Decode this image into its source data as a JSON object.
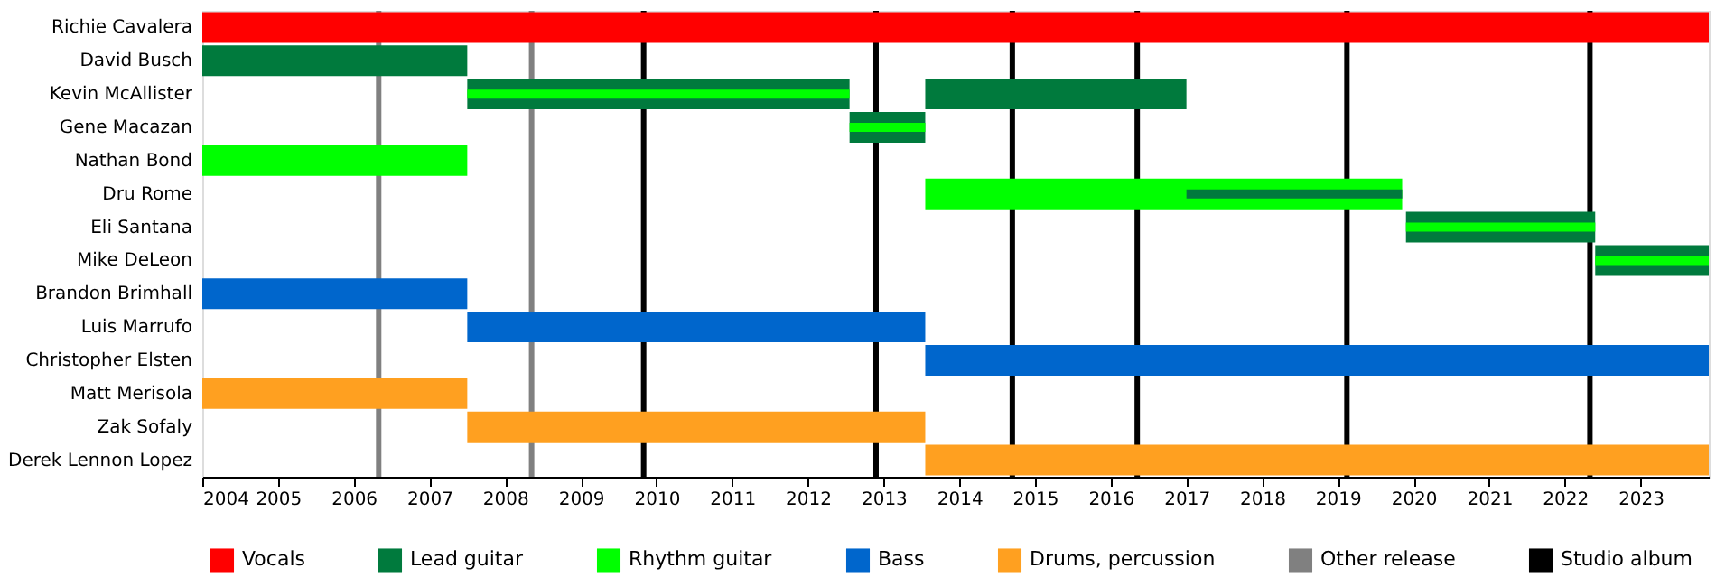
{
  "chart_data": {
    "type": "bar",
    "orientation": "horizontal",
    "categories": [
      "Richie Cavalera",
      "David Busch",
      "Kevin McAllister",
      "Gene Macazan",
      "Nathan Bond",
      "Dru Rome",
      "Eli Santana",
      "Mike DeLeon",
      "Brandon Brimhall",
      "Luis Marrufo",
      "Christopher Elsten",
      "Matt Merisola",
      "Zak Sofaly",
      "Derek Lennon Lopez"
    ],
    "series": [
      {
        "name": "Vocals",
        "color": "#ff0000",
        "base": [
          2004,
          null,
          null,
          null,
          null,
          null,
          null,
          null,
          null,
          null,
          null,
          null,
          null,
          null
        ],
        "values": [
          19.9,
          null,
          null,
          null,
          null,
          null,
          null,
          null,
          null,
          null,
          null,
          null,
          null,
          null
        ]
      },
      {
        "name": "Lead guitar",
        "color": "#007a3d",
        "base": [
          null,
          2004,
          2007.5,
          2012.55,
          null,
          null,
          2019.9,
          2022.4,
          null,
          null,
          null,
          null,
          null,
          null
        ],
        "values": [
          null,
          3.5,
          5.05,
          1.0,
          null,
          null,
          2.5,
          1.5,
          null,
          null,
          null,
          null,
          null,
          null
        ]
      },
      {
        "color": "#007a3d",
        "base": [
          null,
          null,
          2013.55,
          null,
          null,
          null,
          null,
          null,
          null,
          null,
          null,
          null,
          null,
          null
        ],
        "values": [
          null,
          null,
          3.45,
          null,
          null,
          null,
          null,
          null,
          null,
          null,
          null,
          null,
          null,
          null
        ]
      },
      {
        "name": "Rhythm guitar",
        "color": "#00ff00",
        "base": [
          null,
          null,
          null,
          null,
          2004,
          2013.55,
          null,
          null,
          null,
          null,
          null,
          null,
          null,
          null
        ],
        "values": [
          null,
          null,
          null,
          null,
          3.5,
          6.3,
          null,
          null,
          null,
          null,
          null,
          null,
          null,
          null
        ]
      },
      {
        "name": "Bass",
        "color": "#0066cc",
        "base": [
          null,
          null,
          null,
          null,
          null,
          null,
          null,
          null,
          2004,
          2007.5,
          2013.55,
          null,
          null,
          null
        ],
        "values": [
          null,
          null,
          null,
          null,
          null,
          null,
          null,
          null,
          3.5,
          6.05,
          10.35,
          null,
          null,
          null
        ]
      },
      {
        "name": "Drums, percussion",
        "color": "#ffa020",
        "base": [
          null,
          null,
          null,
          null,
          null,
          null,
          null,
          null,
          null,
          null,
          null,
          2004,
          2007.5,
          2013.55
        ],
        "values": [
          null,
          null,
          null,
          null,
          null,
          null,
          null,
          null,
          null,
          null,
          null,
          3.5,
          6.05,
          10.35
        ]
      },
      {
        "color": "#00ff00",
        "base": [
          null,
          null,
          2007.5,
          2012.55,
          null,
          null,
          2019.9,
          2022.4,
          null,
          null,
          null,
          null,
          null,
          null
        ],
        "values": [
          null,
          null,
          5.05,
          1.0,
          null,
          null,
          2.5,
          1.5,
          null,
          null,
          null,
          null,
          null,
          null
        ]
      },
      {
        "color": "#007a3d",
        "base": [
          null,
          null,
          null,
          null,
          null,
          2017.0,
          null,
          null,
          null,
          null,
          null,
          null,
          null,
          null
        ],
        "values": [
          null,
          null,
          null,
          null,
          null,
          2.85,
          null,
          null,
          null,
          null,
          null,
          null,
          null,
          null
        ]
      }
    ],
    "xlim": [
      2004,
      2023.9
    ],
    "xticks": [
      2004,
      2005,
      2006,
      2007,
      2008,
      2009,
      2010,
      2011,
      2012,
      2013,
      2014,
      2015,
      2016,
      2017,
      2018,
      2019,
      2020,
      2021,
      2022,
      2023
    ],
    "ref_lines": [
      {
        "axis": "x",
        "value": 2006.33,
        "label": "Other release",
        "color": "#808080"
      },
      {
        "axis": "x",
        "value": 2008.35,
        "color": "#808080"
      },
      {
        "axis": "x",
        "value": 2009.83,
        "label": "Studio album",
        "color": "#000000"
      },
      {
        "axis": "x",
        "value": 2012.9,
        "color": "#000000"
      },
      {
        "axis": "x",
        "value": 2014.7,
        "color": "#000000"
      },
      {
        "axis": "x",
        "value": 2016.35,
        "color": "#000000"
      },
      {
        "axis": "x",
        "value": 2019.12,
        "color": "#000000"
      },
      {
        "axis": "x",
        "value": 2022.33,
        "color": "#000000"
      }
    ],
    "grid": false,
    "legend": "bottom"
  }
}
